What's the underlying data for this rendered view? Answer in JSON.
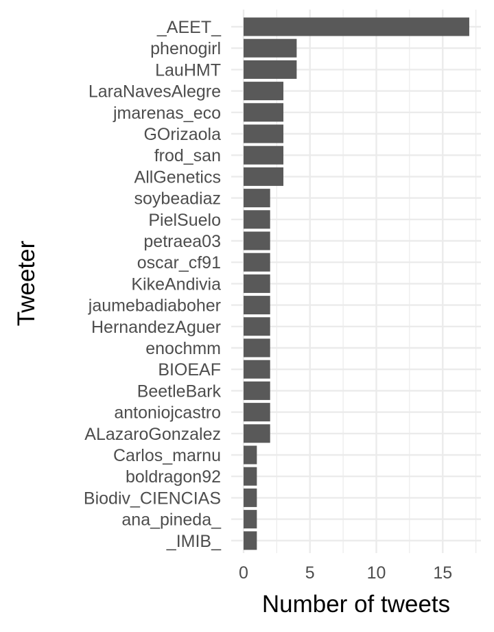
{
  "chart_data": {
    "type": "bar",
    "orientation": "horizontal",
    "xlabel": "Number of tweets",
    "ylabel": "Tweeter",
    "xlim": [
      0,
      17.5
    ],
    "xticks": [
      0,
      5,
      10,
      15
    ],
    "grid": true,
    "bar_color": "#595959",
    "grid_color": "#ebebeb",
    "categories": [
      "_AEET_",
      "phenogirl",
      "LauHMT",
      "LaraNavesAlegre",
      "jmarenas_eco",
      "GOrizaola",
      "frod_san",
      "AllGenetics",
      "soybeadiaz",
      "PielSuelo",
      "petraea03",
      "oscar_cf91",
      "KikeAndivia",
      "jaumebadiaboher",
      "HernandezAguer",
      "enochmm",
      "BIOEAF",
      "BeetleBark",
      "antoniojcastro",
      "ALazaroGonzalez",
      "Carlos_marnu",
      "boldragon92",
      "Biodiv_CIENCIAS",
      "ana_pineda_",
      "_IMIB_"
    ],
    "values": [
      17,
      4,
      4,
      3,
      3,
      3,
      3,
      3,
      2,
      2,
      2,
      2,
      2,
      2,
      2,
      2,
      2,
      2,
      2,
      2,
      1,
      1,
      1,
      1,
      1
    ]
  }
}
